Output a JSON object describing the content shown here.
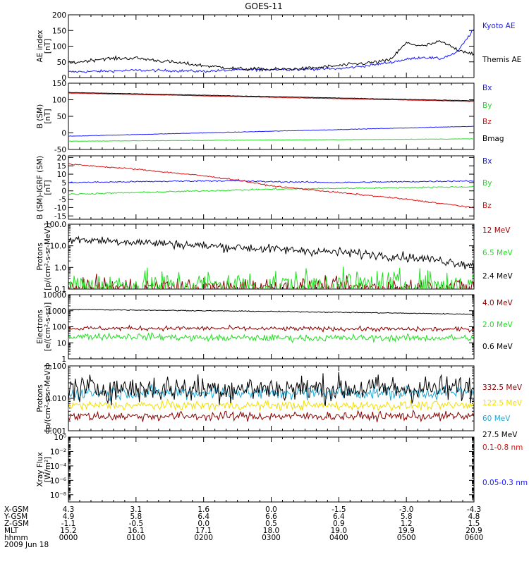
{
  "title": "GOES-11",
  "colors": {
    "black": "#000000",
    "blue": "#1a1aff",
    "green": "#22dd22",
    "red": "#dd1111",
    "darkred": "#8b0000",
    "yellow": "#f0e000",
    "cyan": "#1ea8d8"
  },
  "chart_data": [
    {
      "id": "ae",
      "type": "line",
      "ylabel": [
        "AE index",
        "[nT]"
      ],
      "scale": "linear",
      "ylim": [
        0,
        200
      ],
      "yticks": [
        0,
        50,
        100,
        150,
        200
      ],
      "ytick_labels": [
        "0",
        "50",
        "100",
        "150",
        "200"
      ],
      "x": [
        0,
        0.5,
        1,
        1.5,
        2,
        2.5,
        3,
        3.5,
        4,
        4.5,
        4.75,
        5,
        5.25,
        5.5,
        5.75,
        6
      ],
      "series": [
        {
          "name": "Kyoto AE",
          "color": "blue",
          "values": [
            18,
            20,
            23,
            22,
            20,
            24,
            26,
            27,
            28,
            40,
            48,
            58,
            65,
            60,
            80,
            155
          ],
          "noise": 3
        },
        {
          "name": "Themis AE",
          "color": "black",
          "values": [
            45,
            60,
            62,
            50,
            38,
            28,
            26,
            28,
            38,
            48,
            55,
            110,
            100,
            115,
            90,
            75
          ],
          "noise": 4
        }
      ]
    },
    {
      "id": "b",
      "type": "line",
      "ylabel": [
        "B (SM)",
        "[nT]"
      ],
      "scale": "linear",
      "ylim": [
        -50,
        150
      ],
      "yticks": [
        -50,
        0,
        50,
        100,
        150
      ],
      "ytick_labels": [
        "-50",
        "0",
        "50",
        "100",
        "150"
      ],
      "x": [
        0,
        6
      ],
      "series": [
        {
          "name": "Bx",
          "color": "blue",
          "values": [
            -10,
            20
          ],
          "noise": 0.5
        },
        {
          "name": "By",
          "color": "green",
          "values": [
            -25,
            -18
          ],
          "noise": 0.5
        },
        {
          "name": "Bz",
          "color": "red",
          "values": [
            120,
            95
          ],
          "noise": 0.5
        },
        {
          "name": "Bmag",
          "color": "black",
          "values": [
            122,
            97
          ],
          "noise": 0.5
        }
      ]
    },
    {
      "id": "bigrf",
      "type": "line",
      "ylabel": [
        "B (SM)-IGRF (SM)",
        "[nT]"
      ],
      "scale": "linear",
      "ylim": [
        -17,
        21
      ],
      "yticks": [
        -15,
        -10,
        -5,
        0,
        5,
        10,
        15,
        20
      ],
      "ytick_labels": [
        "-15",
        "-10",
        "-5",
        "0",
        "5",
        "10",
        "15",
        "20"
      ],
      "x": [
        0,
        1,
        2,
        2.5,
        3,
        4,
        5,
        6
      ],
      "series": [
        {
          "name": "Bx",
          "color": "blue",
          "values": [
            5,
            5.5,
            6,
            6,
            5.5,
            5,
            5.5,
            6
          ],
          "noise": 0.3
        },
        {
          "name": "By",
          "color": "green",
          "values": [
            -2,
            -1,
            0,
            0.5,
            1,
            1.5,
            2,
            2.5
          ],
          "noise": 0.3
        },
        {
          "name": "Bz",
          "color": "red",
          "values": [
            16,
            13,
            9,
            6.5,
            3,
            -1,
            -5,
            -10
          ],
          "noise": 0.3
        }
      ]
    },
    {
      "id": "protons_hi",
      "type": "line",
      "ylabel": [
        "Protons",
        "[p/(cm²-s-sr-MeV)]"
      ],
      "scale": "log",
      "ylim": [
        0.1,
        100
      ],
      "yticks": [
        0.1,
        1,
        10,
        100
      ],
      "ytick_labels": [
        "0.1",
        "1.0",
        "10.0",
        "100.0"
      ],
      "x": [
        0,
        1,
        2,
        3,
        4,
        5,
        6
      ],
      "series": [
        {
          "name": "12 MeV",
          "color": "darkred",
          "values": [
            0.12,
            0.12,
            0.12,
            0.12,
            0.12,
            0.12,
            0.12
          ],
          "noise": 0.3
        },
        {
          "name": "6.5 MeV",
          "color": "green",
          "values": [
            0.15,
            0.15,
            0.15,
            0.15,
            0.15,
            0.15,
            0.15
          ],
          "noise": 0.5
        },
        {
          "name": "2.4 MeV",
          "color": "black",
          "values": [
            20,
            15,
            10,
            7,
            5,
            3,
            1.2
          ],
          "noise": 0.15
        }
      ]
    },
    {
      "id": "electrons",
      "type": "line",
      "ylabel": [
        "Electrons",
        "[e/(cm²-s-sr)]"
      ],
      "scale": "log",
      "ylim": [
        1,
        10000
      ],
      "yticks": [
        1,
        10,
        100,
        1000,
        10000
      ],
      "ytick_labels": [
        "1",
        "10",
        "100",
        "1000",
        "10000"
      ],
      "x": [
        0,
        1,
        2,
        3,
        4,
        5,
        6
      ],
      "series": [
        {
          "name": "4.0 MeV",
          "color": "darkred",
          "values": [
            80,
            80,
            80,
            75,
            75,
            70,
            70
          ],
          "noise": 0.1
        },
        {
          "name": "2.0 MeV",
          "color": "green",
          "values": [
            25,
            25,
            20,
            20,
            20,
            20,
            20
          ],
          "noise": 0.15
        },
        {
          "name": "0.6 MeV",
          "color": "black",
          "values": [
            1200,
            1100,
            1000,
            900,
            800,
            700,
            600
          ],
          "noise": 0.02
        }
      ]
    },
    {
      "id": "protons_lo",
      "type": "line",
      "ylabel": [
        "Protons",
        "[p/(cm²-s-sr-MeV)]"
      ],
      "scale": "log",
      "ylim": [
        0.001,
        0.1
      ],
      "yticks": [
        0.001,
        0.01,
        0.1
      ],
      "ytick_labels": [
        "0.001",
        "0.010",
        "0.100"
      ],
      "x": [
        0,
        6
      ],
      "series": [
        {
          "name": "332.5 MeV",
          "color": "darkred",
          "values": [
            0.0028,
            0.0028
          ],
          "noise": 0.1
        },
        {
          "name": "122.5 MeV",
          "color": "yellow",
          "values": [
            0.006,
            0.006
          ],
          "noise": 0.1
        },
        {
          "name": "60 MeV",
          "color": "cyan",
          "values": [
            0.015,
            0.015
          ],
          "noise": 0.15
        },
        {
          "name": "27.5 MeV",
          "color": "black",
          "values": [
            0.02,
            0.02
          ],
          "noise": 0.3
        }
      ]
    },
    {
      "id": "xray",
      "type": "line",
      "ylabel": [
        "Xray  Flux",
        "[W/m²]"
      ],
      "scale": "log",
      "ylim": [
        1e-09,
        1
      ],
      "yticks": [
        1e-08,
        1e-06,
        0.0001,
        0.01,
        1
      ],
      "ytick_labels": [
        "10⁻⁸",
        "10⁻⁶",
        "10⁻⁴",
        "10⁻²",
        "10⁰"
      ],
      "x": [],
      "series": [],
      "legend": [
        {
          "name": "0.1-0.8 nm",
          "color": "red"
        },
        {
          "name": "0.05-0.3 nm",
          "color": "blue"
        }
      ]
    }
  ],
  "ephemeris": {
    "labels": [
      "X-GSM",
      "Y-GSM",
      "Z-GSM",
      "MLT",
      "hhmm"
    ],
    "columns": [
      [
        "4.3",
        "4.9",
        "-1.1",
        "15.2",
        "0000"
      ],
      [
        "3.1",
        "5.8",
        "-0.5",
        "16.1",
        "0100"
      ],
      [
        "1.6",
        "6.4",
        "0.0",
        "17.1",
        "0200"
      ],
      [
        "0.0",
        "6.6",
        "0.5",
        "18.0",
        "0300"
      ],
      [
        "-1.5",
        "6.4",
        "0.9",
        "19.0",
        "0400"
      ],
      [
        "-3.0",
        "5.8",
        "1.2",
        "19.9",
        "0500"
      ],
      [
        "-4.3",
        "4.8",
        "1.5",
        "20.9",
        "0600"
      ]
    ],
    "date": "2009 Jun 18"
  }
}
